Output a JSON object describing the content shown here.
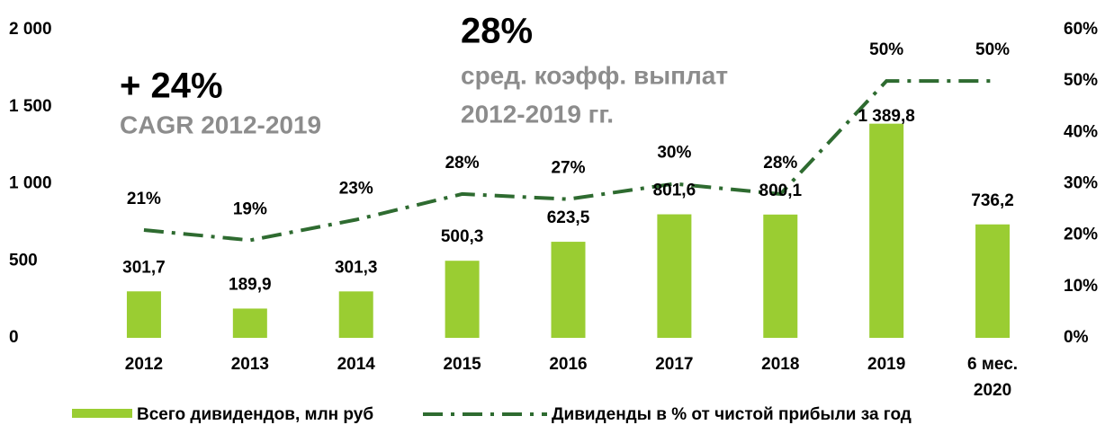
{
  "chart_data": {
    "type": "bar_line",
    "annotations": [
      "+ 24%",
      "CAGR 2012-2019",
      "28%",
      "сред. коэфф. выплат",
      "2012-2019 гг."
    ],
    "categories": [
      "2012",
      "2013",
      "2014",
      "2015",
      "2016",
      "2017",
      "2018",
      "2019",
      "6 мес. 2020"
    ],
    "series": [
      {
        "name": "Всего дивидендов, млн руб",
        "color": "#9acd32",
        "values": [
          301.7,
          189.9,
          301.3,
          500.3,
          623.5,
          801.6,
          800.1,
          1389.8,
          736.2
        ],
        "value_labels": [
          "301,7",
          "189,9",
          "301,3",
          "500,3",
          "623,5",
          "801,6",
          "800,1",
          "1 389,8",
          "736,2"
        ]
      },
      {
        "name": "Дивиденды в % от чистой прибыли за год",
        "color": "#2e6b30",
        "axis": "y2",
        "values": [
          21,
          19,
          23,
          28,
          27,
          30,
          28,
          50,
          50
        ],
        "value_labels": [
          "21%",
          "19%",
          "23%",
          "28%",
          "27%",
          "30%",
          "28%",
          "50%",
          "50%"
        ]
      }
    ],
    "ylim": [
      0,
      2000
    ],
    "yticks": [
      0,
      500,
      {
        "value": 1000,
        "label": "1 000"
      },
      {
        "value": 1500,
        "label": "1 500"
      },
      {
        "value": 2000,
        "label": "2 000"
      }
    ],
    "y2lim": [
      0,
      60
    ],
    "y2ticks": [
      {
        "value": 0,
        "label": "0%"
      },
      {
        "value": 10,
        "label": "10%"
      },
      {
        "value": 20,
        "label": "20%"
      },
      {
        "value": 30,
        "label": "30%"
      },
      {
        "value": 40,
        "label": "40%"
      },
      {
        "value": 50,
        "label": "50%"
      },
      {
        "value": 60,
        "label": "60%"
      }
    ]
  }
}
